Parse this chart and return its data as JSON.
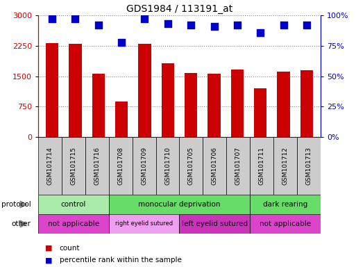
{
  "title": "GDS1984 / 113191_at",
  "samples": [
    "GSM101714",
    "GSM101715",
    "GSM101716",
    "GSM101708",
    "GSM101709",
    "GSM101710",
    "GSM101705",
    "GSM101706",
    "GSM101707",
    "GSM101711",
    "GSM101712",
    "GSM101713"
  ],
  "counts": [
    2320,
    2300,
    1560,
    880,
    2290,
    1820,
    1570,
    1560,
    1660,
    1200,
    1620,
    1640
  ],
  "percentile_ranks": [
    97,
    97,
    92,
    78,
    97,
    93,
    92,
    91,
    92,
    86,
    92,
    92
  ],
  "bar_color": "#cc0000",
  "dot_color": "#0000cc",
  "ylim_left": [
    0,
    3000
  ],
  "ylim_right": [
    0,
    100
  ],
  "yticks_left": [
    0,
    750,
    1500,
    2250,
    3000
  ],
  "yticks_right": [
    0,
    25,
    50,
    75,
    100
  ],
  "protocol_groups": [
    {
      "label": "control",
      "start": 0,
      "end": 3,
      "color": "#aaeaaa"
    },
    {
      "label": "monocular deprivation",
      "start": 3,
      "end": 9,
      "color": "#66dd66"
    },
    {
      "label": "dark rearing",
      "start": 9,
      "end": 12,
      "color": "#66dd66"
    }
  ],
  "other_groups": [
    {
      "label": "not applicable",
      "start": 0,
      "end": 3,
      "color": "#dd44cc"
    },
    {
      "label": "right eyelid sutured",
      "start": 3,
      "end": 6,
      "color": "#eea0ee"
    },
    {
      "label": "left eyelid sutured",
      "start": 6,
      "end": 9,
      "color": "#cc33bb"
    },
    {
      "label": "not applicable",
      "start": 9,
      "end": 12,
      "color": "#dd44cc"
    }
  ],
  "legend_count_color": "#cc0000",
  "legend_pct_color": "#0000cc",
  "bg_color": "#ffffff",
  "tick_label_color_left": "#cc0000",
  "tick_label_color_right": "#0000bb",
  "grid_color": "#888888",
  "xlabel_bg": "#cccccc",
  "bar_width": 0.55,
  "dot_size": 55,
  "n_samples": 12
}
